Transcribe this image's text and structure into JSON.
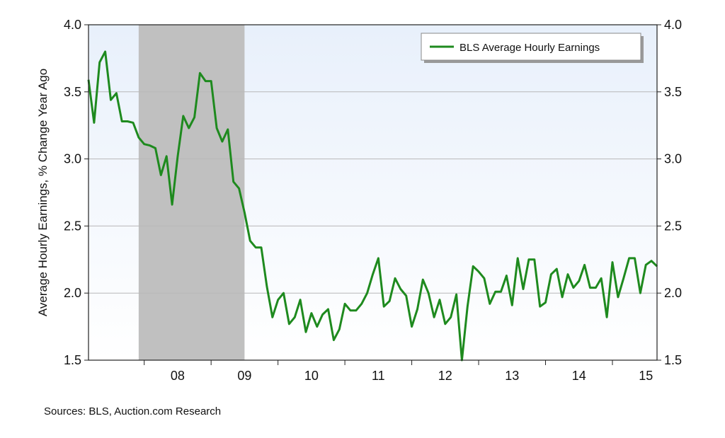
{
  "chart_data": {
    "type": "line",
    "title": "",
    "xlabel": "",
    "ylabel": "Average Hourly Earnings, % Change Year Ago",
    "ylim": [
      1.5,
      4.0
    ],
    "y_ticks": [
      "1.5",
      "2.0",
      "2.5",
      "3.0",
      "3.5",
      "4.0"
    ],
    "x_range": [
      2007.167,
      2015.667
    ],
    "x_ticks": [
      {
        "label": "08",
        "x": 2008.5
      },
      {
        "label": "09",
        "x": 2009.5
      },
      {
        "label": "10",
        "x": 2010.5
      },
      {
        "label": "11",
        "x": 2011.5
      },
      {
        "label": "12",
        "x": 2012.5
      },
      {
        "label": "13",
        "x": 2013.5
      },
      {
        "label": "14",
        "x": 2014.5
      },
      {
        "label": "15",
        "x": 2015.5
      }
    ],
    "recession": {
      "start": 2007.917,
      "end": 2009.5,
      "color": "#c0c0c0"
    },
    "grid": true,
    "legend_position": "top-right",
    "series": [
      {
        "name": "BLS Average Hourly Earnings",
        "color": "#1e8a1e",
        "x_start": 2007.167,
        "x_step": 0.08333,
        "values": [
          3.59,
          3.27,
          3.72,
          3.8,
          3.44,
          3.49,
          3.28,
          3.28,
          3.27,
          3.16,
          3.11,
          3.1,
          3.08,
          2.88,
          3.02,
          2.66,
          3.02,
          3.32,
          3.23,
          3.31,
          3.64,
          3.58,
          3.58,
          3.23,
          3.13,
          3.22,
          2.83,
          2.78,
          2.6,
          2.39,
          2.34,
          2.34,
          2.05,
          1.82,
          1.95,
          2.0,
          1.77,
          1.82,
          1.95,
          1.71,
          1.85,
          1.75,
          1.84,
          1.88,
          1.65,
          1.73,
          1.92,
          1.87,
          1.87,
          1.92,
          2.0,
          2.14,
          2.26,
          1.9,
          1.94,
          2.11,
          2.03,
          1.98,
          1.75,
          1.88,
          2.1,
          2.0,
          1.82,
          1.95,
          1.77,
          1.82,
          1.99,
          1.5,
          1.9,
          2.2,
          2.16,
          2.11,
          1.92,
          2.01,
          2.01,
          2.13,
          1.91,
          2.26,
          2.03,
          2.25,
          2.25,
          1.9,
          1.93,
          2.14,
          2.18,
          1.97,
          2.14,
          2.04,
          2.09,
          2.21,
          2.04,
          2.04,
          2.11,
          1.82,
          2.23,
          1.97,
          2.11,
          2.26,
          2.26,
          2.0,
          2.21,
          2.24,
          2.2
        ]
      }
    ]
  },
  "source_text": "Sources: BLS, Auction.com Research"
}
